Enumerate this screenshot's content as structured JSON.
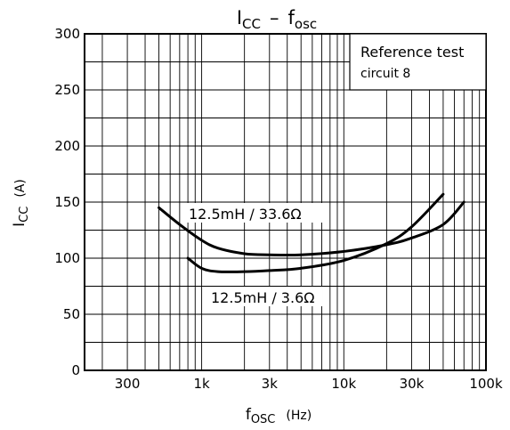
{
  "chart_data": {
    "type": "line",
    "title_main": "I",
    "title_main_sub": "CC",
    "title_sep": "–",
    "title_second": "f",
    "title_second_sub": "osc",
    "xlabel_main": "f",
    "xlabel_sub": "OSC",
    "xlabel_unit": "(Hz)",
    "ylabel_main": "I",
    "ylabel_sub": "CC",
    "ylabel_unit": "(A)",
    "x_scale": "log",
    "xlim": [
      150,
      100000
    ],
    "ylim": [
      0,
      300
    ],
    "grid": true,
    "x_ticks": [
      {
        "value": 300,
        "label": "300"
      },
      {
        "value": 1000,
        "label": "1k"
      },
      {
        "value": 3000,
        "label": "3k"
      },
      {
        "value": 10000,
        "label": "10k"
      },
      {
        "value": 30000,
        "label": "30k"
      },
      {
        "value": 100000,
        "label": "100k"
      }
    ],
    "y_ticks": [
      {
        "value": 0,
        "label": "0"
      },
      {
        "value": 50,
        "label": "50"
      },
      {
        "value": 100,
        "label": "100"
      },
      {
        "value": 150,
        "label": "150"
      },
      {
        "value": 200,
        "label": "200"
      },
      {
        "value": 250,
        "label": "250"
      },
      {
        "value": 300,
        "label": "300"
      }
    ],
    "legend_box": {
      "line1": "Reference test",
      "line2": "circuit 8",
      "placement": "top-right"
    },
    "series": [
      {
        "name": "12.5mH / 33.6Ω",
        "x": [
          500,
          700,
          1000,
          1300,
          2000,
          3000,
          5000,
          10000,
          20000,
          30000,
          50000,
          70000
        ],
        "y": [
          145,
          130,
          116,
          109,
          104,
          103,
          103,
          106,
          112,
          118,
          130,
          150
        ]
      },
      {
        "name": "12.5mH / 3.6Ω",
        "x": [
          800,
          1000,
          1300,
          2000,
          3000,
          5000,
          10000,
          20000,
          30000,
          50000
        ],
        "y": [
          100,
          91,
          88,
          88,
          89,
          91,
          98,
          113,
          128,
          157
        ]
      }
    ],
    "annotations": [
      {
        "text": "12.5mH / 33.6Ω",
        "series": 0
      },
      {
        "text": "12.5mH / 3.6Ω",
        "series": 1
      }
    ]
  }
}
